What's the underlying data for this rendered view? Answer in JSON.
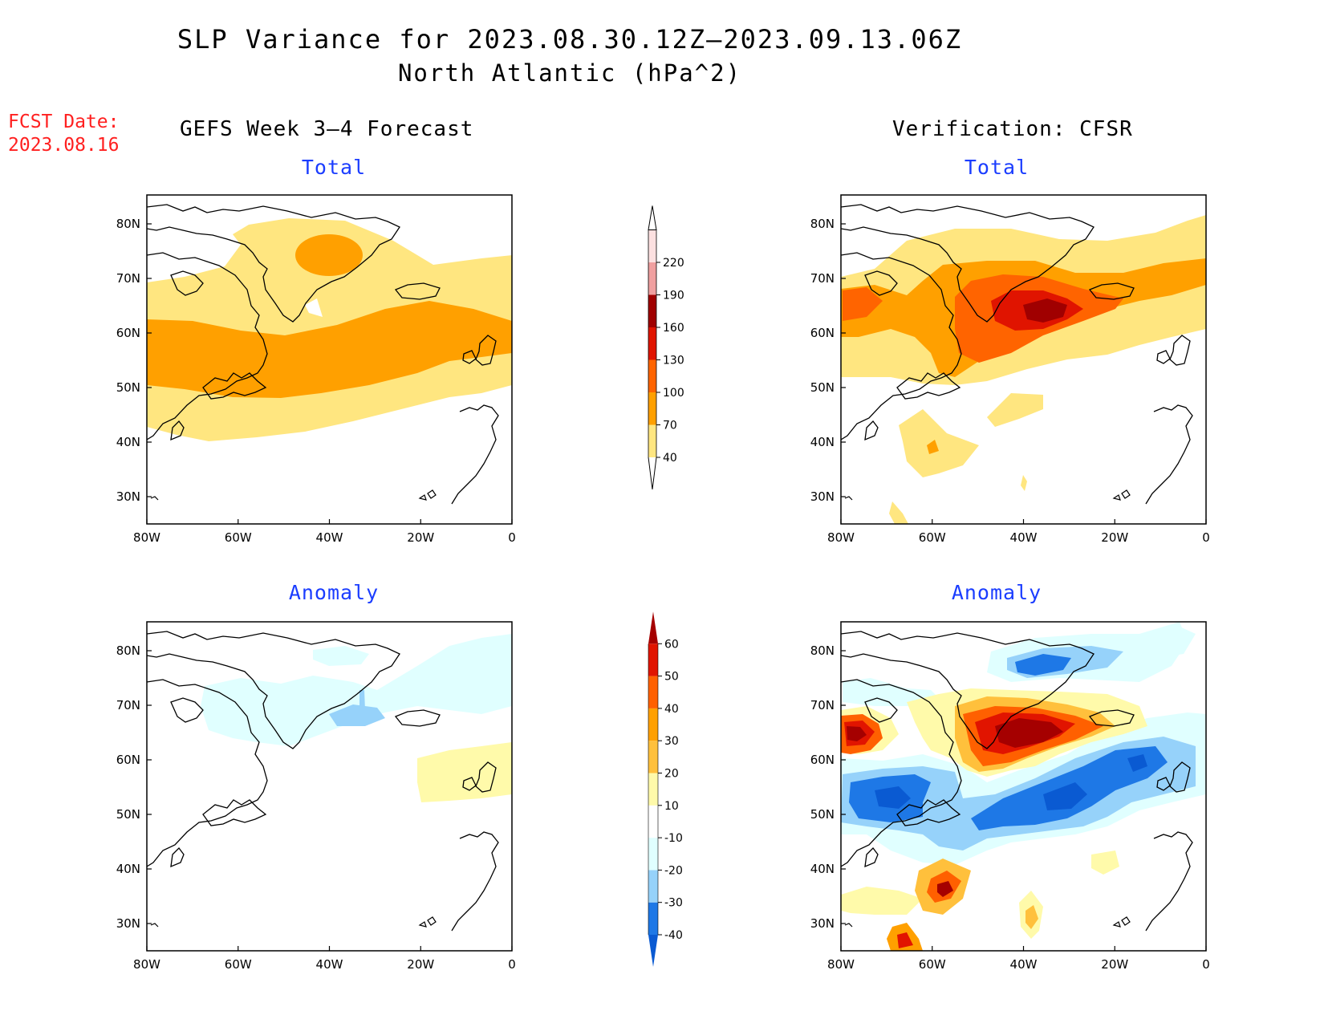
{
  "title": "SLP Variance for 2023.08.30.12Z–2023.09.13.06Z",
  "subtitle": "North Atlantic (hPa^2)",
  "forecast_date_label": "FCST Date:",
  "forecast_date": "2023.08.16",
  "columns": {
    "left": "GEFS Week 3–4 Forecast",
    "right": "Verification: CFSR"
  },
  "panels": [
    {
      "id": "forecast-total",
      "heading": "Total"
    },
    {
      "id": "verification-total",
      "heading": "Total"
    },
    {
      "id": "forecast-anomaly",
      "heading": "Anomaly"
    },
    {
      "id": "verification-anomaly",
      "heading": "Anomaly"
    }
  ],
  "axes": {
    "lat_ticks": [
      "80N",
      "70N",
      "60N",
      "50N",
      "40N",
      "30N"
    ],
    "lon_ticks": [
      "80W",
      "60W",
      "40W",
      "20W",
      "0"
    ]
  },
  "colorbars": {
    "total": {
      "levels": [
        "40",
        "70",
        "100",
        "130",
        "160",
        "190",
        "220"
      ],
      "colors": [
        "#ffe680",
        "#ffa000",
        "#ff6400",
        "#e01400",
        "#a00000",
        "#f0a0a0",
        "#fce0e0"
      ]
    },
    "anomaly": {
      "levels": [
        "-40",
        "-30",
        "-20",
        "-10",
        "10",
        "20",
        "30",
        "40",
        "50",
        "60"
      ],
      "colors": [
        "#0a5ad2",
        "#1e78e6",
        "#96d2fa",
        "#e0ffff",
        "#ffffff",
        "#fffaaa",
        "#ffc03c",
        "#ffa000",
        "#ff6000",
        "#e11400",
        "#a50000"
      ]
    }
  }
}
